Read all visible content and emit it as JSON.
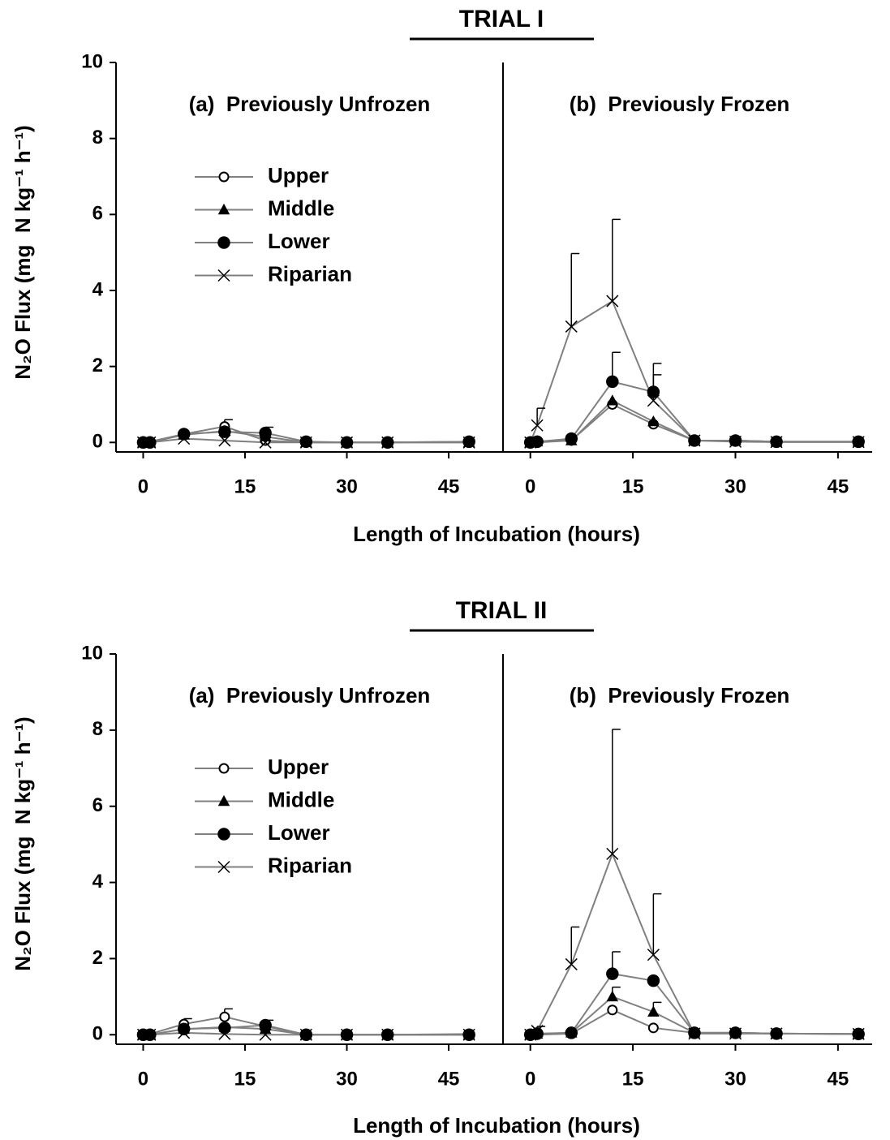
{
  "chart_data": [
    {
      "type": "line",
      "title": "TRIAL I",
      "annotation": "(a)  Previously Unfrozen",
      "xlabel": "Length of Incubation (hours)",
      "ylabel": "N₂O Flux (mg  N kg⁻¹ h⁻¹)",
      "x": [
        0,
        1,
        6,
        12,
        18,
        24,
        30,
        36,
        48
      ],
      "xlim": [
        -4,
        53
      ],
      "xticks": [
        0,
        15,
        30,
        45
      ],
      "ylim": [
        -0.25,
        10
      ],
      "yticks": [
        0,
        2,
        4,
        6,
        8,
        10
      ],
      "series": [
        {
          "name": "Upper",
          "color": "#808080",
          "marker": "open-circle",
          "values": [
            0.02,
            0.02,
            0.22,
            0.42,
            0.05,
            0,
            0,
            0,
            0.02
          ],
          "errors": [
            null,
            null,
            null,
            0.18,
            null,
            null,
            null,
            null,
            null
          ]
        },
        {
          "name": "Middle",
          "color": "#808080",
          "marker": "triangle",
          "values": [
            0,
            0,
            0.2,
            0.3,
            0.15,
            0,
            0,
            0,
            0
          ]
        },
        {
          "name": "Lower",
          "color": "#808080",
          "marker": "circle",
          "values": [
            0,
            0,
            0.22,
            0.28,
            0.25,
            0.02,
            0,
            0,
            0.02
          ],
          "errors": [
            null,
            null,
            null,
            null,
            0.15,
            null,
            null,
            null,
            null
          ]
        },
        {
          "name": "Riparian",
          "color": "#808080",
          "marker": "x",
          "values": [
            0,
            0,
            0.1,
            0.05,
            0,
            0,
            0,
            0,
            0
          ]
        }
      ]
    },
    {
      "type": "line",
      "annotation": "(b)  Previously Frozen",
      "x": [
        0,
        1,
        6,
        12,
        18,
        24,
        30,
        36,
        48
      ],
      "xlim": [
        -4,
        50
      ],
      "xticks": [
        0,
        15,
        30,
        45
      ],
      "ylim": [
        -0.25,
        10
      ],
      "series": [
        {
          "color": "#808080",
          "marker": "open-circle",
          "values": [
            0,
            0,
            0.05,
            1.0,
            0.48,
            0.05,
            0.05,
            0.02,
            0.02
          ]
        },
        {
          "color": "#808080",
          "marker": "triangle",
          "values": [
            0,
            0.02,
            0.05,
            1.1,
            0.55,
            0.05,
            0.05,
            0.02,
            0.02
          ]
        },
        {
          "color": "#808080",
          "marker": "circle",
          "values": [
            0,
            0.02,
            0.1,
            1.6,
            1.33,
            0.05,
            0.05,
            0.02,
            0.02
          ],
          "errors": [
            null,
            null,
            null,
            0.77,
            0.75,
            null,
            null,
            null,
            null
          ]
        },
        {
          "color": "#808080",
          "marker": "x",
          "values": [
            0,
            0.45,
            3.05,
            3.72,
            1.1,
            0.05,
            0.02,
            0.01,
            0.01
          ],
          "errors": [
            null,
            0.45,
            1.92,
            2.15,
            0.68,
            null,
            null,
            null,
            null
          ]
        }
      ]
    },
    {
      "type": "line",
      "title": "TRIAL II",
      "annotation": "(a)  Previously Unfrozen",
      "xlabel": "Length of Incubation (hours)",
      "ylabel": "N₂O Flux (mg  N kg⁻¹ h⁻¹)",
      "x": [
        0,
        1,
        6,
        12,
        18,
        24,
        30,
        36,
        48
      ],
      "xlim": [
        -4,
        53
      ],
      "xticks": [
        0,
        15,
        30,
        45
      ],
      "ylim": [
        -0.25,
        10
      ],
      "yticks": [
        0,
        2,
        4,
        6,
        8,
        10
      ],
      "series": [
        {
          "name": "Upper",
          "color": "#808080",
          "marker": "open-circle",
          "values": [
            0.02,
            0.02,
            0.28,
            0.47,
            0.22,
            0,
            0,
            0,
            0.02
          ],
          "errors": [
            null,
            null,
            0.14,
            0.21,
            0.16,
            null,
            null,
            null,
            null
          ]
        },
        {
          "name": "Middle",
          "color": "#808080",
          "marker": "triangle",
          "values": [
            0,
            0,
            0.15,
            0.2,
            0.15,
            0,
            0,
            0,
            0
          ]
        },
        {
          "name": "Lower",
          "color": "#808080",
          "marker": "circle",
          "values": [
            0,
            0,
            0.15,
            0.18,
            0.25,
            0,
            0,
            0,
            0
          ]
        },
        {
          "name": "Riparian",
          "color": "#808080",
          "marker": "x",
          "values": [
            0,
            0,
            0.05,
            0.02,
            0,
            0,
            0,
            0,
            0
          ]
        }
      ]
    },
    {
      "type": "line",
      "annotation": "(b)  Previously Frozen",
      "x": [
        0,
        1,
        6,
        12,
        18,
        24,
        30,
        36,
        48
      ],
      "xlim": [
        -4,
        50
      ],
      "xticks": [
        0,
        15,
        30,
        45
      ],
      "ylim": [
        -0.25,
        10
      ],
      "series": [
        {
          "color": "#808080",
          "marker": "open-circle",
          "values": [
            0,
            0,
            0.03,
            0.65,
            0.18,
            0.05,
            0.05,
            0.03,
            0.02
          ]
        },
        {
          "color": "#808080",
          "marker": "triangle",
          "values": [
            0,
            0.02,
            0.05,
            1.0,
            0.6,
            0.05,
            0.05,
            0.03,
            0.02
          ],
          "errors": [
            null,
            null,
            null,
            0.25,
            0.25,
            null,
            null,
            null,
            null
          ]
        },
        {
          "color": "#808080",
          "marker": "circle",
          "values": [
            0,
            0.03,
            0.05,
            1.6,
            1.42,
            0.05,
            0.05,
            0.03,
            0.02
          ],
          "errors": [
            null,
            null,
            null,
            0.58,
            null,
            null,
            null,
            null,
            null
          ]
        },
        {
          "color": "#808080",
          "marker": "x",
          "values": [
            0,
            0.1,
            1.85,
            4.75,
            2.1,
            0.03,
            0.03,
            0.03,
            0.02
          ],
          "errors": [
            null,
            0.12,
            0.98,
            3.27,
            1.6,
            null,
            null,
            null,
            null
          ]
        }
      ]
    }
  ]
}
